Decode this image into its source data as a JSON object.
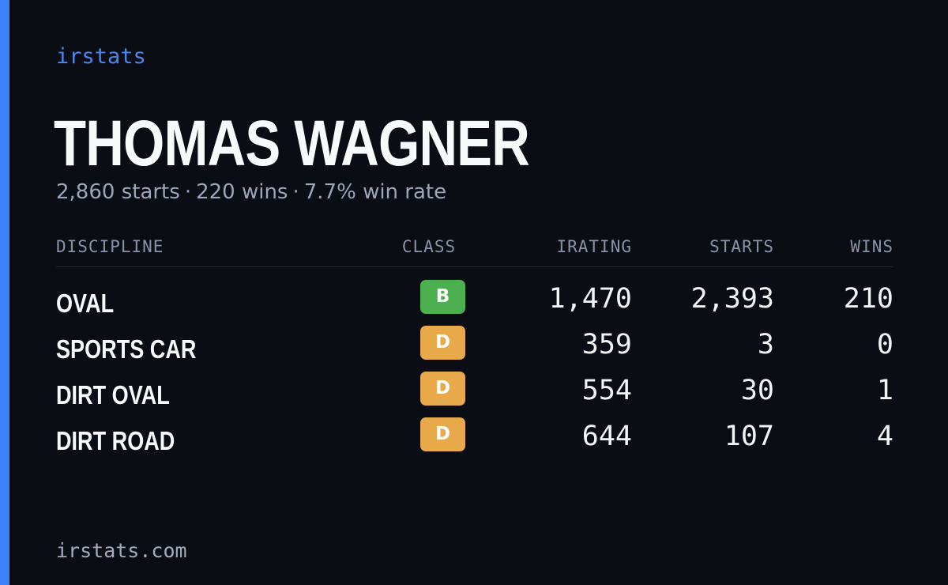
{
  "brand": "irstats",
  "player": {
    "name": "THOMAS WAGNER",
    "starts_text": "2,860 starts",
    "separator": "·",
    "wins_text": "220 wins",
    "win_rate_text": "7.7% win rate"
  },
  "table": {
    "headers": {
      "discipline": "DISCIPLINE",
      "class": "CLASS",
      "irating": "IRATING",
      "starts": "STARTS",
      "wins": "WINS"
    },
    "rows": [
      {
        "discipline": "OVAL",
        "class": "B",
        "irating": "1,470",
        "starts": "2,393",
        "wins": "210"
      },
      {
        "discipline": "SPORTS CAR",
        "class": "D",
        "irating": "359",
        "starts": "3",
        "wins": "0"
      },
      {
        "discipline": "DIRT OVAL",
        "class": "D",
        "irating": "554",
        "starts": "30",
        "wins": "1"
      },
      {
        "discipline": "DIRT ROAD",
        "class": "D",
        "irating": "644",
        "starts": "107",
        "wins": "4"
      }
    ]
  },
  "colors": {
    "background": "#0a0d14",
    "accent": "#3b82f6",
    "class_b": "#4caf50",
    "class_d": "#e8a94a"
  },
  "footer": "irstats.com"
}
